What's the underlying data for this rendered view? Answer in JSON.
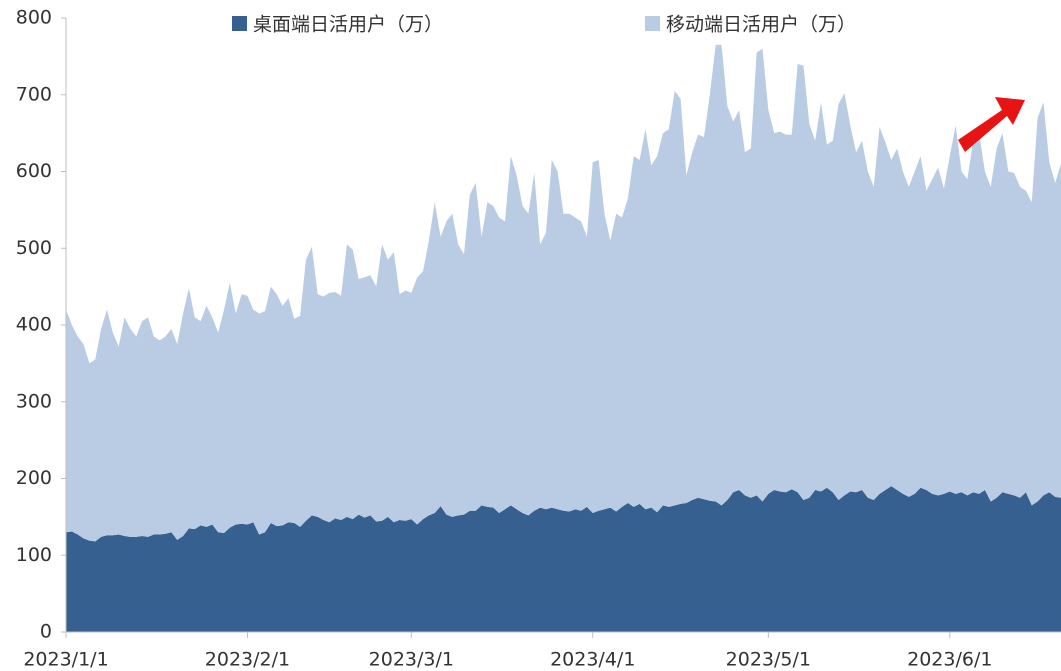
{
  "chart_data": {
    "type": "stacked-area",
    "x": [
      "2023/1/1",
      "2023/1/2",
      "2023/1/3",
      "2023/1/4",
      "2023/1/5",
      "2023/1/6",
      "2023/1/7",
      "2023/1/8",
      "2023/1/9",
      "2023/1/10",
      "2023/1/11",
      "2023/1/12",
      "2023/1/13",
      "2023/1/14",
      "2023/1/15",
      "2023/1/16",
      "2023/1/17",
      "2023/1/18",
      "2023/1/19",
      "2023/1/20",
      "2023/1/21",
      "2023/1/22",
      "2023/1/23",
      "2023/1/24",
      "2023/1/25",
      "2023/1/26",
      "2023/1/27",
      "2023/1/28",
      "2023/1/29",
      "2023/1/30",
      "2023/1/31",
      "2023/2/1",
      "2023/2/2",
      "2023/2/3",
      "2023/2/4",
      "2023/2/5",
      "2023/2/6",
      "2023/2/7",
      "2023/2/8",
      "2023/2/9",
      "2023/2/10",
      "2023/2/11",
      "2023/2/12",
      "2023/2/13",
      "2023/2/14",
      "2023/2/15",
      "2023/2/16",
      "2023/2/17",
      "2023/2/18",
      "2023/2/19",
      "2023/2/20",
      "2023/2/21",
      "2023/2/22",
      "2023/2/23",
      "2023/2/24",
      "2023/2/25",
      "2023/2/26",
      "2023/2/27",
      "2023/2/28",
      "2023/3/1",
      "2023/3/2",
      "2023/3/3",
      "2023/3/4",
      "2023/3/5",
      "2023/3/6",
      "2023/3/7",
      "2023/3/8",
      "2023/3/9",
      "2023/3/10",
      "2023/3/11",
      "2023/3/12",
      "2023/3/13",
      "2023/3/14",
      "2023/3/15",
      "2023/3/16",
      "2023/3/17",
      "2023/3/18",
      "2023/3/19",
      "2023/3/20",
      "2023/3/21",
      "2023/3/22",
      "2023/3/23",
      "2023/3/24",
      "2023/3/25",
      "2023/3/26",
      "2023/3/27",
      "2023/3/28",
      "2023/3/29",
      "2023/3/30",
      "2023/3/31",
      "2023/4/1",
      "2023/4/2",
      "2023/4/3",
      "2023/4/4",
      "2023/4/5",
      "2023/4/6",
      "2023/4/7",
      "2023/4/8",
      "2023/4/9",
      "2023/4/10",
      "2023/4/11",
      "2023/4/12",
      "2023/4/13",
      "2023/4/14",
      "2023/4/15",
      "2023/4/16",
      "2023/4/17",
      "2023/4/18",
      "2023/4/19",
      "2023/4/20",
      "2023/4/21",
      "2023/4/22",
      "2023/4/23",
      "2023/4/24",
      "2023/4/25",
      "2023/4/26",
      "2023/4/27",
      "2023/4/28",
      "2023/4/29",
      "2023/4/30",
      "2023/5/1",
      "2023/5/2",
      "2023/5/3",
      "2023/5/4",
      "2023/5/5",
      "2023/5/6",
      "2023/5/7",
      "2023/5/8",
      "2023/5/9",
      "2023/5/10",
      "2023/5/11",
      "2023/5/12",
      "2023/5/13",
      "2023/5/14",
      "2023/5/15",
      "2023/5/16",
      "2023/5/17",
      "2023/5/18",
      "2023/5/19",
      "2023/5/20",
      "2023/5/21",
      "2023/5/22",
      "2023/5/23",
      "2023/5/24",
      "2023/5/25",
      "2023/5/26",
      "2023/5/27",
      "2023/5/28",
      "2023/5/29",
      "2023/5/30",
      "2023/5/31",
      "2023/6/1",
      "2023/6/2",
      "2023/6/3",
      "2023/6/4",
      "2023/6/5",
      "2023/6/6",
      "2023/6/7",
      "2023/6/8",
      "2023/6/9",
      "2023/6/10",
      "2023/6/11",
      "2023/6/12",
      "2023/6/13",
      "2023/6/14",
      "2023/6/15",
      "2023/6/16",
      "2023/6/17",
      "2023/6/18",
      "2023/6/19",
      "2023/6/20"
    ],
    "series": [
      {
        "name": "桌面端日活用户（万）",
        "color": "#36608f",
        "values": [
          130,
          131,
          127,
          122,
          119,
          118,
          124,
          126,
          126,
          127,
          125,
          124,
          124,
          125,
          124,
          127,
          127,
          128,
          130,
          120,
          125,
          135,
          134,
          139,
          137,
          140,
          130,
          129,
          136,
          140,
          141,
          140,
          143,
          127,
          130,
          142,
          138,
          139,
          143,
          142,
          137,
          145,
          152,
          150,
          146,
          143,
          148,
          146,
          150,
          147,
          153,
          149,
          152,
          144,
          145,
          150,
          143,
          146,
          145,
          147,
          140,
          147,
          152,
          155,
          164,
          153,
          150,
          152,
          153,
          158,
          158,
          165,
          163,
          162,
          155,
          160,
          165,
          160,
          155,
          152,
          158,
          162,
          160,
          162,
          160,
          158,
          157,
          160,
          158,
          163,
          155,
          158,
          160,
          162,
          157,
          163,
          168,
          163,
          167,
          160,
          162,
          156,
          165,
          163,
          165,
          167,
          168,
          172,
          175,
          173,
          171,
          170,
          165,
          172,
          182,
          185,
          178,
          175,
          178,
          170,
          180,
          185,
          183,
          182,
          186,
          182,
          172,
          175,
          185,
          183,
          188,
          182,
          172,
          178,
          183,
          182,
          185,
          175,
          172,
          180,
          185,
          190,
          185,
          180,
          176,
          180,
          188,
          185,
          180,
          178,
          180,
          183,
          180,
          182,
          178,
          182,
          180,
          185,
          170,
          175,
          182,
          180,
          178,
          175,
          182,
          165,
          170,
          178,
          182,
          176,
          175
        ]
      },
      {
        "name": "移动端日活用户（万）",
        "color": "#b9cce4",
        "values": [
          290,
          269,
          258,
          253,
          231,
          237,
          271,
          294,
          264,
          245,
          285,
          271,
          261,
          280,
          286,
          258,
          253,
          257,
          265,
          255,
          290,
          313,
          276,
          266,
          288,
          270,
          260,
          291,
          319,
          275,
          299,
          298,
          277,
          288,
          288,
          308,
          302,
          286,
          292,
          266,
          275,
          340,
          350,
          290,
          291,
          299,
          295,
          292,
          355,
          351,
          307,
          313,
          313,
          306,
          360,
          335,
          352,
          294,
          300,
          295,
          322,
          323,
          358,
          405,
          351,
          382,
          395,
          353,
          339,
          412,
          427,
          350,
          397,
          393,
          385,
          375,
          455,
          435,
          400,
          393,
          440,
          343,
          360,
          453,
          440,
          387,
          388,
          380,
          377,
          352,
          457,
          457,
          385,
          348,
          388,
          377,
          397,
          457,
          448,
          495,
          446,
          464,
          485,
          492,
          540,
          528,
          427,
          453,
          473,
          472,
          529,
          595,
          600,
          513,
          483,
          495,
          447,
          455,
          577,
          590,
          500,
          465,
          469,
          466,
          462,
          558,
          566,
          487,
          455,
          507,
          447,
          458,
          516,
          524,
          477,
          443,
          455,
          425,
          408,
          478,
          453,
          425,
          445,
          420,
          404,
          420,
          432,
          390,
          410,
          427,
          398,
          437,
          480,
          418,
          412,
          458,
          470,
          415,
          410,
          455,
          468,
          420,
          420,
          405,
          393,
          395,
          500,
          512,
          430,
          409,
          435
        ]
      }
    ],
    "xlim": [
      "2023/1/1",
      "2023/6/20"
    ],
    "xticks": [
      "2023/1/1",
      "2023/2/1",
      "2023/3/1",
      "2023/4/1",
      "2023/5/1",
      "2023/6/1"
    ],
    "ylim": [
      0,
      800
    ],
    "yticks": [
      0,
      100,
      200,
      300,
      400,
      500,
      600,
      700,
      800
    ],
    "legend": "top",
    "grid": false
  }
}
